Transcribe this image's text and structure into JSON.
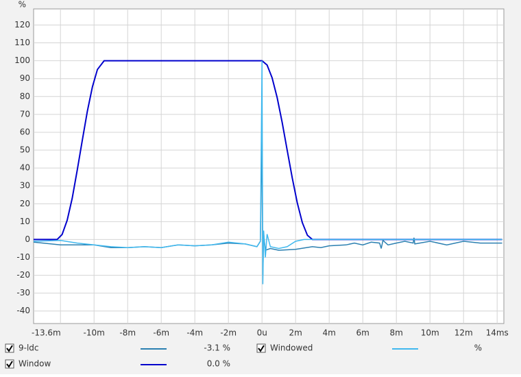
{
  "chart_data": {
    "type": "line",
    "y_label": "%",
    "xlim": [
      -13.6,
      14.4
    ],
    "ylim": [
      -47,
      129
    ],
    "xticks": [
      {
        "value": -13.6,
        "label": "-13.6m"
      },
      {
        "value": -10,
        "label": "-10m"
      },
      {
        "value": -8,
        "label": "-8m"
      },
      {
        "value": -6,
        "label": "-6m"
      },
      {
        "value": -4,
        "label": "-4m"
      },
      {
        "value": -2,
        "label": "-2m"
      },
      {
        "value": 0,
        "label": "0u"
      },
      {
        "value": 2,
        "label": "2m"
      },
      {
        "value": 4,
        "label": "4m"
      },
      {
        "value": 6,
        "label": "6m"
      },
      {
        "value": 8,
        "label": "8m"
      },
      {
        "value": 10,
        "label": "10m"
      },
      {
        "value": 12,
        "label": "12m"
      },
      {
        "value": 14,
        "label": "14ms"
      }
    ],
    "x_unlabeled_ticks": [
      -12
    ],
    "yticks": [
      -40,
      -30,
      -20,
      -10,
      0,
      10,
      20,
      30,
      40,
      50,
      60,
      70,
      80,
      90,
      100,
      110,
      120
    ],
    "grid": true,
    "series": [
      {
        "name": "9-ldc",
        "color": "#2a7fb0",
        "readout": "-3.1 %",
        "x": [
          -13.6,
          -12,
          -10,
          -9,
          -8,
          -7,
          -6,
          -5,
          -4,
          -3,
          -2,
          -1,
          -0.3,
          -0.1,
          0,
          0.05,
          0.1,
          0.2,
          0.5,
          1,
          2,
          3,
          3.5,
          4,
          5,
          5.5,
          6,
          6.5,
          7,
          7.1,
          7.2,
          7.5,
          8,
          8.5,
          9,
          9.05,
          9.1,
          10,
          11,
          12,
          13,
          14.3
        ],
        "values": [
          -1.5,
          -3,
          -3,
          -4.5,
          -4.5,
          -4,
          -4.5,
          -3,
          -3.5,
          -3,
          -2,
          -2.5,
          -4,
          -1,
          60,
          -20,
          3,
          -6,
          -5,
          -6,
          -5.5,
          -4,
          -4.5,
          -3.5,
          -3,
          -2,
          -3,
          -1.5,
          -2,
          -5,
          -0.5,
          -3,
          -2,
          -1,
          -2,
          1,
          -2.5,
          -1,
          -3,
          -1,
          -2,
          -2
        ]
      },
      {
        "name": "Windowed",
        "color": "#3fb8ee",
        "readout": "%",
        "x": [
          -13.6,
          -12,
          -11,
          -10,
          -9,
          -8,
          -7,
          -6,
          -5,
          -4,
          -3,
          -2,
          -1,
          -0.3,
          -0.1,
          0,
          0.05,
          0.1,
          0.2,
          0.3,
          0.5,
          1,
          1.5,
          2,
          2.5,
          3,
          14.3
        ],
        "values": [
          -1,
          -0.5,
          -2,
          -3,
          -4,
          -4.5,
          -4,
          -4.5,
          -3,
          -3.5,
          -3,
          -1.5,
          -2.5,
          -4,
          -1,
          100,
          -25,
          5,
          -10,
          3,
          -4,
          -5,
          -4,
          -1,
          0,
          0,
          0
        ]
      },
      {
        "name": "Window",
        "color": "#0000cc",
        "readout": "0.0 %",
        "x": [
          -13.6,
          -12.2,
          -11.9,
          -11.6,
          -11.3,
          -11,
          -10.7,
          -10.4,
          -10.1,
          -9.8,
          -9.4,
          0,
          0.3,
          0.6,
          0.9,
          1.2,
          1.5,
          1.8,
          2.1,
          2.4,
          2.7,
          3,
          14.3
        ],
        "values": [
          0,
          0,
          2.8,
          10.8,
          23,
          38.9,
          55.6,
          71.7,
          85.4,
          95.1,
          100,
          100,
          97.6,
          90.5,
          79.4,
          65.5,
          50,
          34.5,
          20.6,
          9.5,
          2.4,
          0,
          0
        ]
      }
    ]
  }
}
